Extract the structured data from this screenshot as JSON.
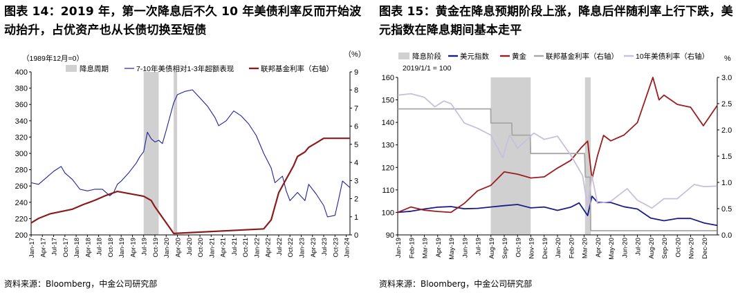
{
  "left": {
    "title": "图表 14：2019 年，第一次降息后不久 10 年美债利率反而开始波动抬升，占优资产也从长债切换至短债",
    "source": "资料来源：Bloomberg，中金公司研究部",
    "chart_data": {
      "type": "line",
      "note": "（1989年12月=0）",
      "y_unit_right": "（%）",
      "ylim": [
        200,
        400
      ],
      "yticks": [
        200,
        220,
        240,
        260,
        280,
        300,
        320,
        340,
        360,
        380,
        400
      ],
      "y2lim": [
        0,
        9
      ],
      "y2ticks": [
        0,
        1,
        2,
        3,
        4,
        5,
        6,
        7,
        8,
        9
      ],
      "x_range": [
        "2017-01",
        "2024-02"
      ],
      "xticks": [
        "Jan-17",
        "Apr-17",
        "Jul-17",
        "Oct-17",
        "Jan-18",
        "Apr-18",
        "Jul-18",
        "Oct-18",
        "Jan-19",
        "Apr-19",
        "Jul-19",
        "Oct-19",
        "Jan-20",
        "Apr-20",
        "Jul-20",
        "Oct-20",
        "Jan-21",
        "Apr-21",
        "Jul-21",
        "Oct-21",
        "Jan-22",
        "Apr-22",
        "Jul-22",
        "Oct-22",
        "Jan-23",
        "Apr-23",
        "Jul-23",
        "Oct-23",
        "Jan-24"
      ],
      "legend": [
        "降息周期",
        "7-10年美债相对1-3年超额表现",
        "联邦基金利率（右轴）"
      ],
      "colors": {
        "shade": "#d0d0d0",
        "excess": "#1f1f9e",
        "ffr": "#8b1a1a"
      },
      "shaded_periods": [
        [
          "2019-07",
          "2019-11"
        ],
        [
          "2020-03",
          "2020-03"
        ]
      ],
      "series": [
        {
          "name": "7-10年美债相对1-3年超额表现",
          "axis": "left",
          "points": [
            [
              "2017-01",
              264
            ],
            [
              "2017-03",
              262
            ],
            [
              "2017-05",
              270
            ],
            [
              "2017-07",
              278
            ],
            [
              "2017-09",
              284
            ],
            [
              "2017-10",
              276
            ],
            [
              "2017-12",
              268
            ],
            [
              "2018-02",
              256
            ],
            [
              "2018-04",
              254
            ],
            [
              "2018-06",
              256
            ],
            [
              "2018-08",
              256
            ],
            [
              "2018-10",
              248
            ],
            [
              "2018-11",
              252
            ],
            [
              "2018-12",
              262
            ],
            [
              "2019-01",
              266
            ],
            [
              "2019-03",
              276
            ],
            [
              "2019-05",
              288
            ],
            [
              "2019-06",
              296
            ],
            [
              "2019-07",
              302
            ],
            [
              "2019-08",
              326
            ],
            [
              "2019-09",
              318
            ],
            [
              "2019-10",
              314
            ],
            [
              "2019-11",
              316
            ],
            [
              "2019-12",
              312
            ],
            [
              "2020-01",
              328
            ],
            [
              "2020-03",
              362
            ],
            [
              "2020-04",
              372
            ],
            [
              "2020-06",
              376
            ],
            [
              "2020-08",
              378
            ],
            [
              "2020-10",
              368
            ],
            [
              "2020-12",
              358
            ],
            [
              "2021-02",
              344
            ],
            [
              "2021-03",
              334
            ],
            [
              "2021-05",
              340
            ],
            [
              "2021-07",
              352
            ],
            [
              "2021-09",
              346
            ],
            [
              "2021-11",
              336
            ],
            [
              "2022-01",
              322
            ],
            [
              "2022-03",
              300
            ],
            [
              "2022-05",
              282
            ],
            [
              "2022-06",
              264
            ],
            [
              "2022-08",
              272
            ],
            [
              "2022-09",
              254
            ],
            [
              "2022-10",
              242
            ],
            [
              "2022-12",
              252
            ],
            [
              "2023-02",
              242
            ],
            [
              "2023-03",
              262
            ],
            [
              "2023-05",
              250
            ],
            [
              "2023-07",
              236
            ],
            [
              "2023-08",
              222
            ],
            [
              "2023-10",
              224
            ],
            [
              "2023-11",
              244
            ],
            [
              "2023-12",
              266
            ],
            [
              "2024-01",
              262
            ],
            [
              "2024-02",
              258
            ]
          ]
        },
        {
          "name": "联邦基金利率（右轴）",
          "axis": "right",
          "points": [
            [
              "2017-01",
              0.66
            ],
            [
              "2017-03",
              0.91
            ],
            [
              "2017-06",
              1.16
            ],
            [
              "2017-12",
              1.42
            ],
            [
              "2018-03",
              1.68
            ],
            [
              "2018-06",
              1.91
            ],
            [
              "2018-09",
              2.18
            ],
            [
              "2018-12",
              2.4
            ],
            [
              "2019-07",
              2.13
            ],
            [
              "2019-09",
              1.9
            ],
            [
              "2019-10",
              1.55
            ],
            [
              "2020-03",
              0.08
            ],
            [
              "2022-03",
              0.33
            ],
            [
              "2022-05",
              0.83
            ],
            [
              "2022-06",
              1.58
            ],
            [
              "2022-07",
              2.33
            ],
            [
              "2022-09",
              3.08
            ],
            [
              "2022-11",
              3.83
            ],
            [
              "2022-12",
              4.33
            ],
            [
              "2023-02",
              4.58
            ],
            [
              "2023-03",
              4.83
            ],
            [
              "2023-05",
              5.08
            ],
            [
              "2023-07",
              5.33
            ],
            [
              "2024-02",
              5.33
            ]
          ]
        }
      ]
    }
  },
  "right": {
    "title": "图表 15：黄金在降息预期阶段上涨，降息后伴随利率上行下跌，美元指数在降息期间基本走平",
    "source": "资料来源：Bloomberg，中金公司研究部",
    "chart_data": {
      "type": "line",
      "note": "2019/1/1 = 100",
      "y_unit_right": "%",
      "ylim": [
        90,
        160
      ],
      "yticks": [
        90,
        100,
        110,
        120,
        130,
        140,
        150,
        160
      ],
      "y2lim": [
        0,
        3
      ],
      "y2ticks": [
        "0.0",
        "0.5",
        "1.0",
        "1.5",
        "2.0",
        "2.5",
        "3.0"
      ],
      "x_range": [
        "2019-01",
        "2021-01"
      ],
      "xticks": [
        "Jan-19",
        "Feb-19",
        "Mar-19",
        "Apr-19",
        "May-19",
        "Jun-19",
        "Jul-19",
        "Aug-19",
        "Sep-19",
        "Oct-19",
        "Nov-19",
        "Dec-19",
        "Jan-20",
        "Feb-20",
        "Mar-20",
        "Apr-20",
        "May-20",
        "Jun-20",
        "Jul-20",
        "Aug-20",
        "Sep-20",
        "Oct-20",
        "Nov-20",
        "Dec-20"
      ],
      "legend": [
        "降息阶段",
        "美元指数",
        "黄金",
        "联邦基金利率（右轴）",
        "10年美债利率（右轴）"
      ],
      "colors": {
        "shade": "#d0d0d0",
        "dollar": "#1a1a8a",
        "gold": "#9b1c1c",
        "ffr": "#a6a6a6",
        "ust10": "#c8bfdc"
      },
      "shaded_periods": [
        [
          "2019-07-31",
          "2019-10-31"
        ],
        [
          "2020-03-03",
          "2020-03-16"
        ]
      ],
      "series": [
        {
          "name": "美元指数",
          "axis": "left",
          "points": [
            [
              "2019-01-01",
              100
            ],
            [
              "2019-02-01",
              100.5
            ],
            [
              "2019-03-01",
              101.5
            ],
            [
              "2019-04-01",
              102.3
            ],
            [
              "2019-05-01",
              102.6
            ],
            [
              "2019-06-01",
              101.6
            ],
            [
              "2019-07-01",
              101.8
            ],
            [
              "2019-08-01",
              102.4
            ],
            [
              "2019-09-01",
              103
            ],
            [
              "2019-10-01",
              103.5
            ],
            [
              "2019-11-01",
              102
            ],
            [
              "2019-12-01",
              102.4
            ],
            [
              "2020-01-01",
              100.9
            ],
            [
              "2020-02-01",
              102.3
            ],
            [
              "2020-02-20",
              104.2
            ],
            [
              "2020-03-09",
              98.6
            ],
            [
              "2020-03-19",
              107.2
            ],
            [
              "2020-04-01",
              104.5
            ],
            [
              "2020-05-01",
              104.4
            ],
            [
              "2020-06-01",
              102.5
            ],
            [
              "2020-07-01",
              101.5
            ],
            [
              "2020-08-01",
              97.5
            ],
            [
              "2020-09-01",
              96.3
            ],
            [
              "2020-10-01",
              97.3
            ],
            [
              "2020-11-01",
              97.3
            ],
            [
              "2020-12-01",
              95.3
            ],
            [
              "2020-12-31",
              94.2
            ]
          ]
        },
        {
          "name": "黄金",
          "axis": "left",
          "points": [
            [
              "2019-01-01",
              100
            ],
            [
              "2019-02-01",
              102.4
            ],
            [
              "2019-03-01",
              101
            ],
            [
              "2019-04-01",
              100.4
            ],
            [
              "2019-05-01",
              100
            ],
            [
              "2019-06-01",
              104
            ],
            [
              "2019-07-01",
              109.6
            ],
            [
              "2019-08-01",
              112
            ],
            [
              "2019-09-01",
              118
            ],
            [
              "2019-10-01",
              117
            ],
            [
              "2019-11-01",
              115.3
            ],
            [
              "2019-12-01",
              115.8
            ],
            [
              "2020-01-01",
              119.7
            ],
            [
              "2020-02-01",
              123.1
            ],
            [
              "2020-02-24",
              128.6
            ],
            [
              "2020-03-09",
              131.7
            ],
            [
              "2020-03-19",
              114.8
            ],
            [
              "2020-04-01",
              125.1
            ],
            [
              "2020-04-15",
              134.2
            ],
            [
              "2020-05-01",
              131.8
            ],
            [
              "2020-06-01",
              134.4
            ],
            [
              "2020-07-01",
              139.9
            ],
            [
              "2020-08-06",
              160
            ],
            [
              "2020-08-20",
              150
            ],
            [
              "2020-09-01",
              152.1
            ],
            [
              "2020-10-01",
              148
            ],
            [
              "2020-11-01",
              146.7
            ],
            [
              "2020-11-30",
              138.5
            ],
            [
              "2020-12-31",
              147.4
            ]
          ]
        },
        {
          "name": "联邦基金利率（右轴）",
          "axis": "right",
          "points": [
            [
              "2019-01-01",
              2.4
            ],
            [
              "2019-07-31",
              2.4
            ],
            [
              "2019-08-01",
              2.13
            ],
            [
              "2019-09-18",
              2.13
            ],
            [
              "2019-09-19",
              1.9
            ],
            [
              "2019-10-30",
              1.9
            ],
            [
              "2019-10-31",
              1.55
            ],
            [
              "2020-03-02",
              1.55
            ],
            [
              "2020-03-04",
              1.1
            ],
            [
              "2020-03-15",
              1.1
            ],
            [
              "2020-03-16",
              0.08
            ],
            [
              "2020-12-31",
              0.08
            ]
          ]
        },
        {
          "name": "10年美债利率（右轴）",
          "axis": "right",
          "points": [
            [
              "2019-01-01",
              2.66
            ],
            [
              "2019-02-01",
              2.69
            ],
            [
              "2019-03-01",
              2.62
            ],
            [
              "2019-03-25",
              2.44
            ],
            [
              "2019-04-15",
              2.55
            ],
            [
              "2019-05-01",
              2.5
            ],
            [
              "2019-06-01",
              2.13
            ],
            [
              "2019-07-01",
              2.03
            ],
            [
              "2019-08-01",
              1.9
            ],
            [
              "2019-08-28",
              1.47
            ],
            [
              "2019-09-13",
              1.9
            ],
            [
              "2019-10-01",
              1.65
            ],
            [
              "2019-11-08",
              1.94
            ],
            [
              "2019-12-01",
              1.82
            ],
            [
              "2020-01-01",
              1.88
            ],
            [
              "2020-02-01",
              1.52
            ],
            [
              "2020-02-28",
              1.13
            ],
            [
              "2020-03-09",
              0.54
            ],
            [
              "2020-03-19",
              1.12
            ],
            [
              "2020-04-01",
              0.6
            ],
            [
              "2020-05-01",
              0.64
            ],
            [
              "2020-06-08",
              0.88
            ],
            [
              "2020-07-01",
              0.66
            ],
            [
              "2020-08-04",
              0.51
            ],
            [
              "2020-09-01",
              0.69
            ],
            [
              "2020-10-01",
              0.69
            ],
            [
              "2020-11-09",
              0.96
            ],
            [
              "2020-12-01",
              0.92
            ],
            [
              "2020-12-31",
              0.93
            ]
          ]
        }
      ]
    }
  }
}
